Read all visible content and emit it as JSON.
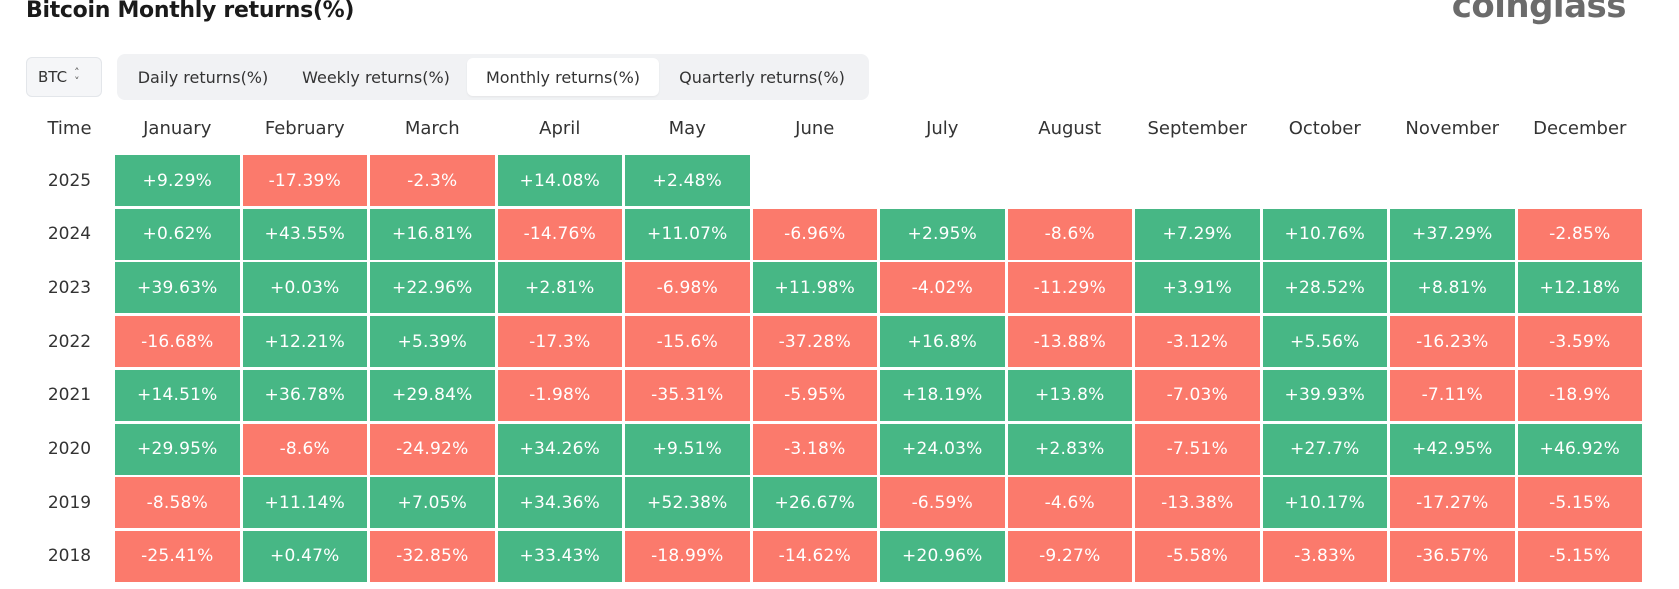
{
  "title": "Bitcoin Monthly returns(%)",
  "logo": "coinglass",
  "asset_select": {
    "value": "BTC",
    "icon": "chevron-up-down-icon"
  },
  "tabs": [
    {
      "label": "Daily returns(%)",
      "active": false
    },
    {
      "label": "Weekly returns(%)",
      "active": false
    },
    {
      "label": "Monthly returns(%)",
      "active": true
    },
    {
      "label": "Quarterly returns(%)",
      "active": false
    }
  ],
  "colors": {
    "positive": "#47b785",
    "negative": "#fb7a6c"
  },
  "chart_data": {
    "type": "table",
    "row_header": "Time",
    "columns": [
      "January",
      "February",
      "March",
      "April",
      "May",
      "June",
      "July",
      "August",
      "September",
      "October",
      "November",
      "December"
    ],
    "rows": [
      {
        "year": "2025",
        "values": [
          "+9.29%",
          "-17.39%",
          "-2.3%",
          "+14.08%",
          "+2.48%",
          "",
          "",
          "",
          "",
          "",
          "",
          ""
        ]
      },
      {
        "year": "2024",
        "values": [
          "+0.62%",
          "+43.55%",
          "+16.81%",
          "-14.76%",
          "+11.07%",
          "-6.96%",
          "+2.95%",
          "-8.6%",
          "+7.29%",
          "+10.76%",
          "+37.29%",
          "-2.85%"
        ]
      },
      {
        "year": "2023",
        "values": [
          "+39.63%",
          "+0.03%",
          "+22.96%",
          "+2.81%",
          "-6.98%",
          "+11.98%",
          "-4.02%",
          "-11.29%",
          "+3.91%",
          "+28.52%",
          "+8.81%",
          "+12.18%"
        ]
      },
      {
        "year": "2022",
        "values": [
          "-16.68%",
          "+12.21%",
          "+5.39%",
          "-17.3%",
          "-15.6%",
          "-37.28%",
          "+16.8%",
          "-13.88%",
          "-3.12%",
          "+5.56%",
          "-16.23%",
          "-3.59%"
        ]
      },
      {
        "year": "2021",
        "values": [
          "+14.51%",
          "+36.78%",
          "+29.84%",
          "-1.98%",
          "-35.31%",
          "-5.95%",
          "+18.19%",
          "+13.8%",
          "-7.03%",
          "+39.93%",
          "-7.11%",
          "-18.9%"
        ]
      },
      {
        "year": "2020",
        "values": [
          "+29.95%",
          "-8.6%",
          "-24.92%",
          "+34.26%",
          "+9.51%",
          "-3.18%",
          "+24.03%",
          "+2.83%",
          "-7.51%",
          "+27.7%",
          "+42.95%",
          "+46.92%"
        ]
      },
      {
        "year": "2019",
        "values": [
          "-8.58%",
          "+11.14%",
          "+7.05%",
          "+34.36%",
          "+52.38%",
          "+26.67%",
          "-6.59%",
          "-4.6%",
          "-13.38%",
          "+10.17%",
          "-17.27%",
          "-5.15%"
        ]
      },
      {
        "year": "2018",
        "values": [
          "-25.41%",
          "+0.47%",
          "-32.85%",
          "+33.43%",
          "-18.99%",
          "-14.62%",
          "+20.96%",
          "-9.27%",
          "-5.58%",
          "-3.83%",
          "-36.57%",
          "-5.15%"
        ]
      }
    ]
  }
}
